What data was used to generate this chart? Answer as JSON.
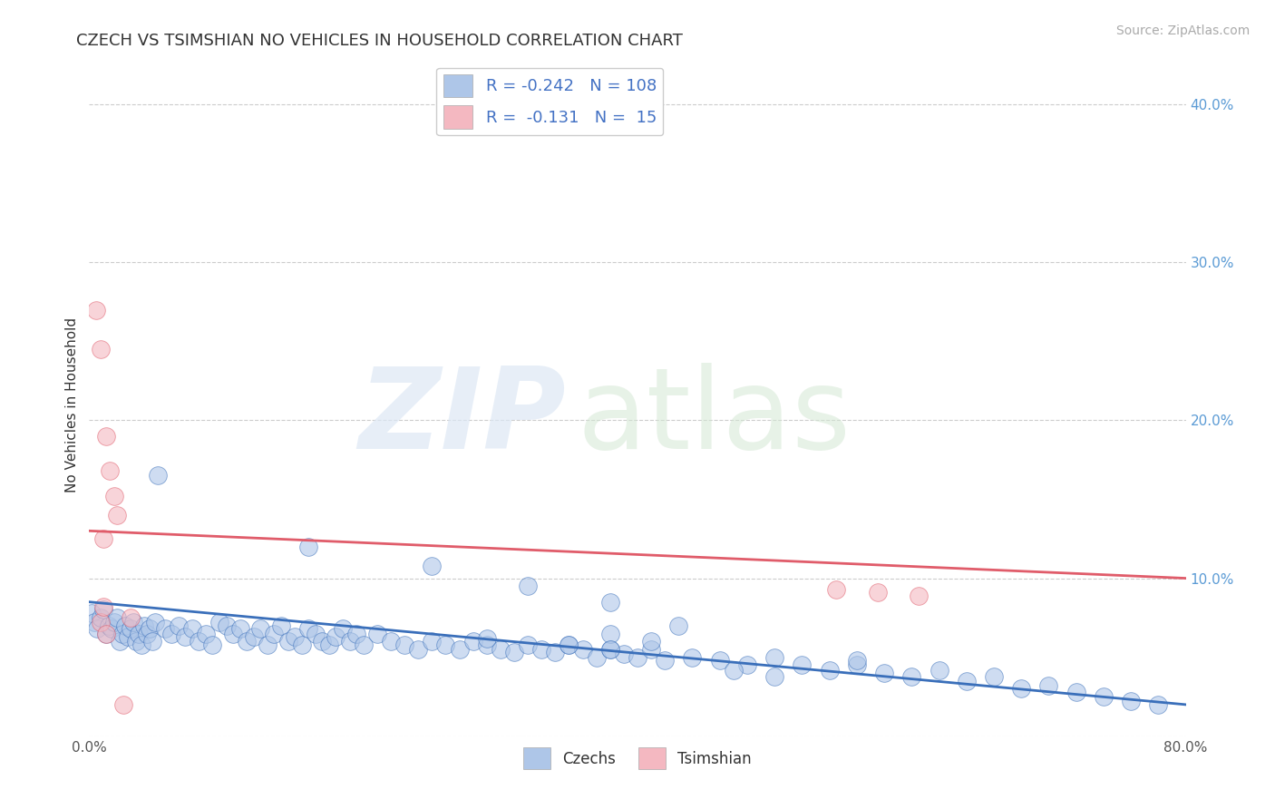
{
  "title": "CZECH VS TSIMSHIAN NO VEHICLES IN HOUSEHOLD CORRELATION CHART",
  "source_text": "Source: ZipAtlas.com",
  "ylabel": "No Vehicles in Household",
  "xlim": [
    0.0,
    0.8
  ],
  "ylim": [
    0.0,
    0.42
  ],
  "background_color": "#ffffff",
  "grid_color": "#cccccc",
  "czech_color": "#aec6e8",
  "tsimshian_color": "#f4b8c1",
  "czech_line_color": "#3a6fba",
  "tsimshian_line_color": "#e05c6a",
  "czech_R": "-0.242",
  "czech_N": "108",
  "tsimshian_R": "-0.131",
  "tsimshian_N": "15",
  "legend_label_czech": "Czechs",
  "legend_label_tsimshian": "Tsimshian",
  "czech_x": [
    0.002,
    0.004,
    0.006,
    0.008,
    0.01,
    0.012,
    0.014,
    0.016,
    0.018,
    0.02,
    0.022,
    0.024,
    0.026,
    0.028,
    0.03,
    0.032,
    0.034,
    0.036,
    0.038,
    0.04,
    0.042,
    0.044,
    0.046,
    0.048,
    0.05,
    0.055,
    0.06,
    0.065,
    0.07,
    0.075,
    0.08,
    0.085,
    0.09,
    0.095,
    0.1,
    0.105,
    0.11,
    0.115,
    0.12,
    0.125,
    0.13,
    0.135,
    0.14,
    0.145,
    0.15,
    0.155,
    0.16,
    0.165,
    0.17,
    0.175,
    0.18,
    0.185,
    0.19,
    0.195,
    0.2,
    0.21,
    0.22,
    0.23,
    0.24,
    0.25,
    0.26,
    0.27,
    0.28,
    0.29,
    0.3,
    0.31,
    0.32,
    0.33,
    0.34,
    0.35,
    0.36,
    0.37,
    0.38,
    0.39,
    0.4,
    0.41,
    0.42,
    0.44,
    0.46,
    0.48,
    0.5,
    0.52,
    0.54,
    0.56,
    0.58,
    0.6,
    0.62,
    0.64,
    0.66,
    0.68,
    0.7,
    0.72,
    0.74,
    0.76,
    0.78,
    0.25,
    0.38,
    0.43,
    0.16,
    0.32,
    0.29,
    0.38,
    0.5,
    0.47,
    0.41,
    0.35,
    0.38,
    0.56
  ],
  "czech_y": [
    0.078,
    0.072,
    0.068,
    0.075,
    0.08,
    0.065,
    0.07,
    0.068,
    0.072,
    0.075,
    0.06,
    0.065,
    0.07,
    0.063,
    0.068,
    0.072,
    0.06,
    0.065,
    0.058,
    0.07,
    0.065,
    0.068,
    0.06,
    0.072,
    0.165,
    0.068,
    0.065,
    0.07,
    0.063,
    0.068,
    0.06,
    0.065,
    0.058,
    0.072,
    0.07,
    0.065,
    0.068,
    0.06,
    0.063,
    0.068,
    0.058,
    0.065,
    0.07,
    0.06,
    0.063,
    0.058,
    0.068,
    0.065,
    0.06,
    0.058,
    0.063,
    0.068,
    0.06,
    0.065,
    0.058,
    0.065,
    0.06,
    0.058,
    0.055,
    0.06,
    0.058,
    0.055,
    0.06,
    0.058,
    0.055,
    0.053,
    0.058,
    0.055,
    0.053,
    0.058,
    0.055,
    0.05,
    0.055,
    0.052,
    0.05,
    0.055,
    0.048,
    0.05,
    0.048,
    0.045,
    0.05,
    0.045,
    0.042,
    0.045,
    0.04,
    0.038,
    0.042,
    0.035,
    0.038,
    0.03,
    0.032,
    0.028,
    0.025,
    0.022,
    0.02,
    0.108,
    0.085,
    0.07,
    0.12,
    0.095,
    0.062,
    0.065,
    0.038,
    0.042,
    0.06,
    0.058,
    0.055,
    0.048
  ],
  "tsimshian_x": [
    0.005,
    0.008,
    0.01,
    0.012,
    0.015,
    0.018,
    0.02,
    0.025,
    0.03,
    0.008,
    0.01,
    0.012,
    0.545,
    0.575,
    0.605
  ],
  "tsimshian_y": [
    0.27,
    0.245,
    0.125,
    0.19,
    0.168,
    0.152,
    0.14,
    0.02,
    0.075,
    0.072,
    0.082,
    0.065,
    0.093,
    0.091,
    0.089
  ]
}
